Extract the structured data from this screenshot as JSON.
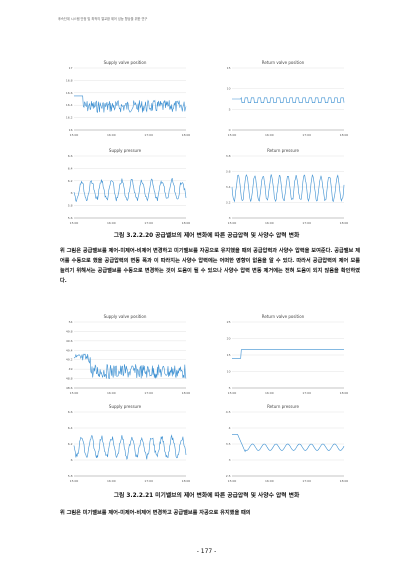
{
  "header": {
    "running_title": "후속단계 시스템 안정 및 최적의 열교환 제어 성능 향상을 위한 연구"
  },
  "figure1": {
    "caption": "그림 3.2.2.20 공급밸브의 제어 변화에 따른 공급압력 및 사양수 압력 변화",
    "charts": [
      {
        "title": "Supply valve position",
        "y_ticks": [
          "17",
          "16.8",
          "16.6",
          "16.4",
          "16.2",
          "16"
        ],
        "x_ticks": [
          "15:00",
          "16:00",
          "17:00",
          "18:00"
        ]
      },
      {
        "title": "Return valve position",
        "y_ticks": [
          "15",
          "10",
          "5",
          "0"
        ],
        "x_ticks": [
          "15:00",
          "16:00",
          "17:00",
          "18:00"
        ]
      },
      {
        "title": "Supply pressure",
        "y_ticks": [
          "6.6",
          "6.4",
          "6.2",
          "6",
          "5.8",
          "5.6"
        ],
        "x_ticks": [
          "15:00",
          "16:00",
          "17:00",
          "18:00"
        ]
      },
      {
        "title": "Return pressure",
        "y_ticks": [
          "3.8",
          "3.6",
          "3.4",
          "3.2",
          "3"
        ],
        "x_ticks": [
          "15:00",
          "16:00",
          "17:00",
          "18:00"
        ]
      }
    ]
  },
  "paragraph1": "위 그림은 공급밸브를 제어-미제어-비제어 변경하고 미기밸브를 자공으로 유지했을 때의 공급압력과 사양수 압력을 보여준다. 공급밸브 제어를 수동으로 했을 공급압력의 변동 폭과 이 따라지는 사양수 압력에는 어떠한 영향이 없음을 알 수 있다. 따라서 공급압력의 제어 모를 늘리기 위해서는 공급밸브를 수동으로 변경하는 것이 도움이 될 수 있으나 사양수 압력 변동 제거에는 전혀 도움이 되지 않음을 확인하였다.",
  "figure2": {
    "caption": "그림 3.2.2.21 미기밸브의 제어 변화에 따른 공급압력 및 사양수 압력 변화",
    "charts": [
      {
        "title": "Supply valve position",
        "y_ticks": [
          "54",
          "49.8",
          "49.6",
          "49.4",
          "49.2",
          "49",
          "48.8",
          "48.6"
        ],
        "x_ticks": [
          "15:00",
          "16:00",
          "17:00",
          "18:00"
        ]
      },
      {
        "title": "Return valve position",
        "y_ticks": [
          "25",
          "20",
          "15",
          "10",
          "5"
        ],
        "x_ticks": [
          "15:00",
          "16:00",
          "17:00",
          "18:00"
        ]
      },
      {
        "title": "Supply pressure",
        "y_ticks": [
          "6.6",
          "6.4",
          "6.2",
          "6",
          "5.8"
        ],
        "x_ticks": [
          "15:00",
          "16:00",
          "17:00",
          "18:00"
        ]
      },
      {
        "title": "Return pressure",
        "y_ticks": [
          "4.5",
          "4",
          "3.5",
          "3",
          "2.5"
        ],
        "x_ticks": [
          "15:00",
          "16:00",
          "17:00",
          "18:00"
        ]
      }
    ]
  },
  "paragraph2": "위 그림은 미기밸브를 제어-미제어-비제어 변경하고 공급밸브를 자공으로 유지했을 때의",
  "page_number": "- 177 -"
}
